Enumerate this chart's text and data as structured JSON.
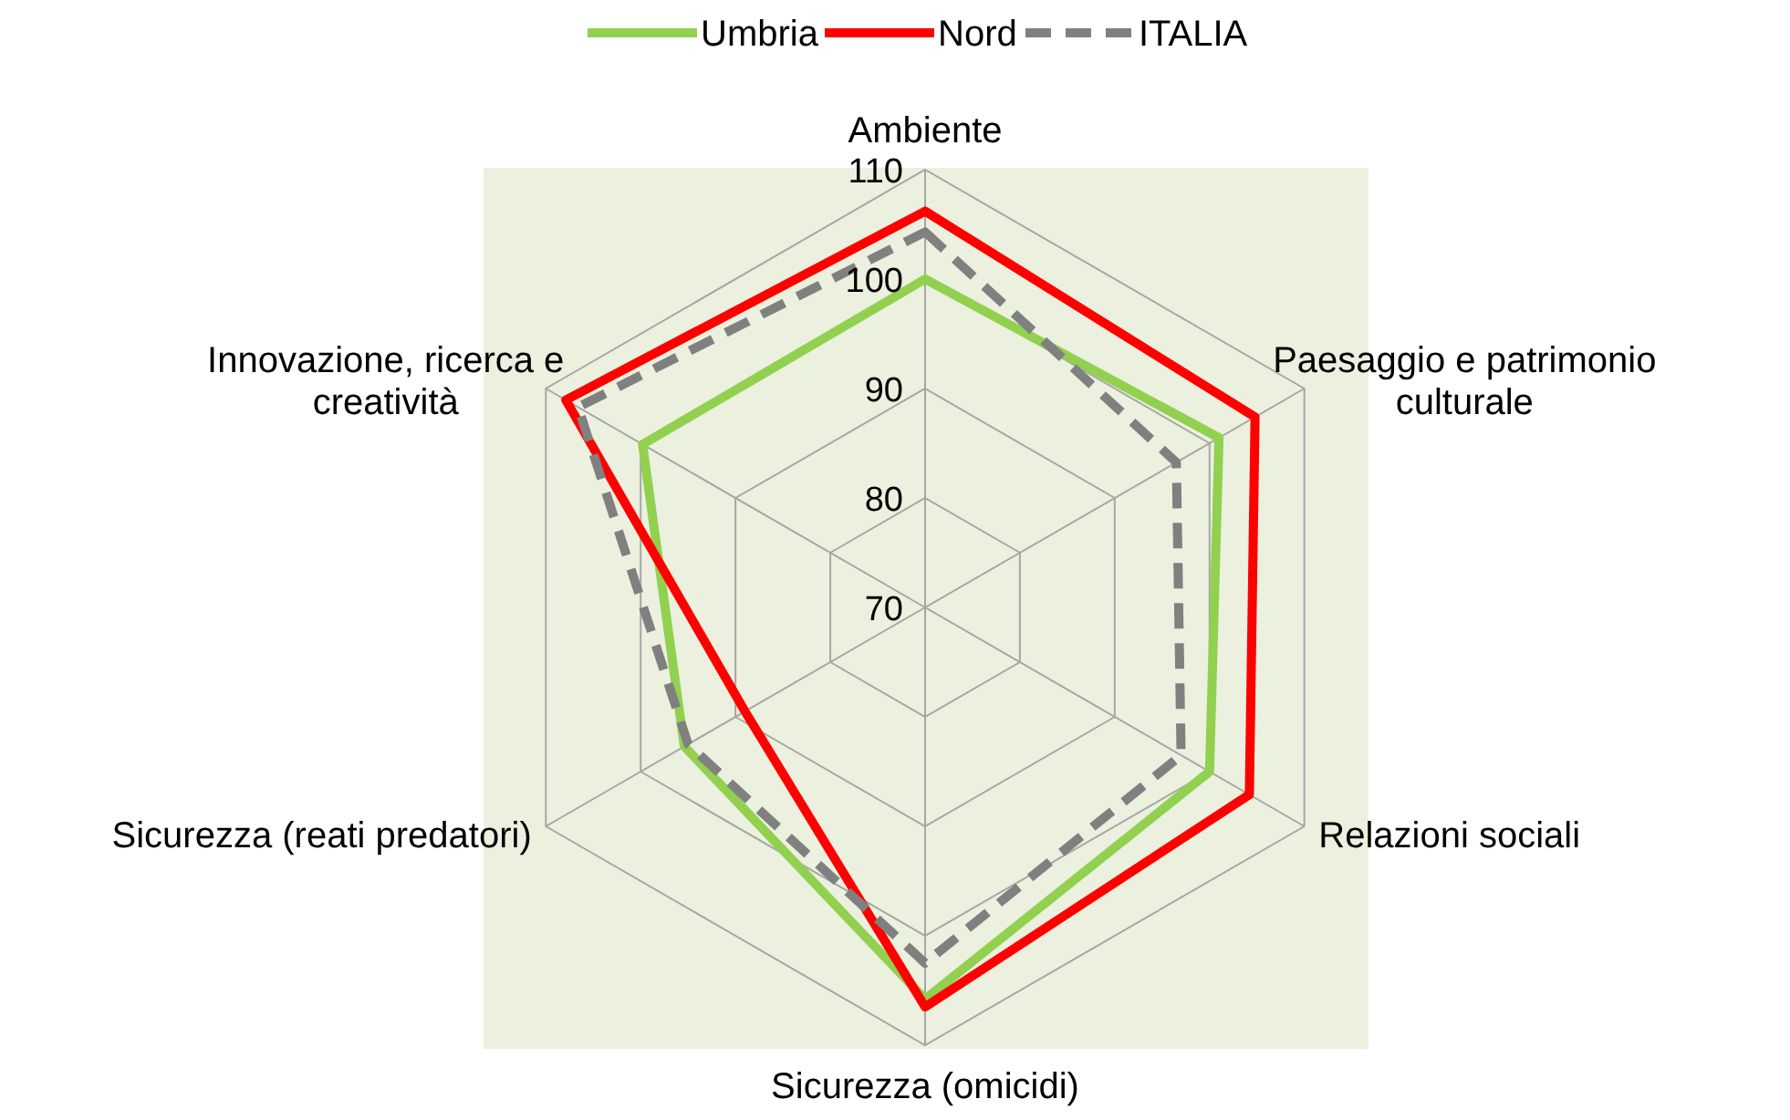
{
  "chart_data": {
    "type": "radar",
    "categories": [
      "Ambiente",
      "Paesaggio e patrimonio\nculturale",
      "Relazioni sociali",
      "Sicurezza (omicidi)",
      "Sicurezza (reati predatori)",
      "Innovazione, ricerca e\ncreatività"
    ],
    "series": [
      {
        "name": "Umbria",
        "color": "#92d050",
        "line_style": "solid",
        "values": [
          100,
          101,
          100,
          105.8,
          95.4,
          99.8
        ]
      },
      {
        "name": "Nord",
        "color": "#ff0000",
        "line_style": "solid",
        "values": [
          106.2,
          104.8,
          104.2,
          106.5,
          89,
          107.9
        ]
      },
      {
        "name": "ITALIA",
        "color": "#808080",
        "line_style": "dashed",
        "values": [
          104.3,
          96.5,
          97,
          102.5,
          95,
          106.6
        ]
      }
    ],
    "ylim": [
      70,
      110
    ],
    "yticks": [
      70,
      80,
      90,
      100,
      110
    ],
    "grid": true,
    "legend": "top"
  }
}
